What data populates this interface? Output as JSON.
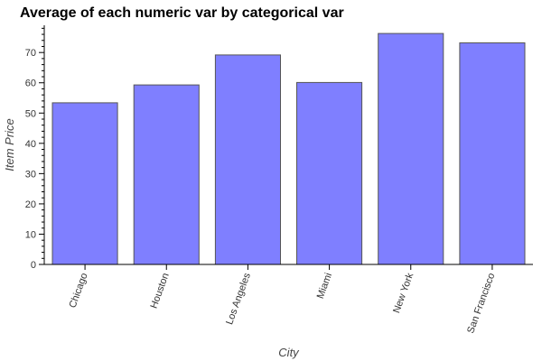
{
  "chart_data": {
    "type": "bar",
    "title": "Average of each numeric var by categorical var",
    "xlabel": "City",
    "ylabel": "Item Price",
    "categories": [
      "Chicago",
      "Houston",
      "Los Angeles",
      "Miami",
      "New York",
      "San Francisco"
    ],
    "values": [
      53.4,
      59.3,
      69.2,
      60.1,
      76.3,
      73.2
    ],
    "ylim": [
      0,
      79
    ],
    "yticks": [
      0,
      10,
      20,
      30,
      40,
      50,
      60,
      70
    ],
    "grid": false,
    "legend": "none",
    "colors": {
      "bar_fill": "#7f7fff",
      "bar_stroke": "#555555",
      "axis": "#000000"
    }
  }
}
